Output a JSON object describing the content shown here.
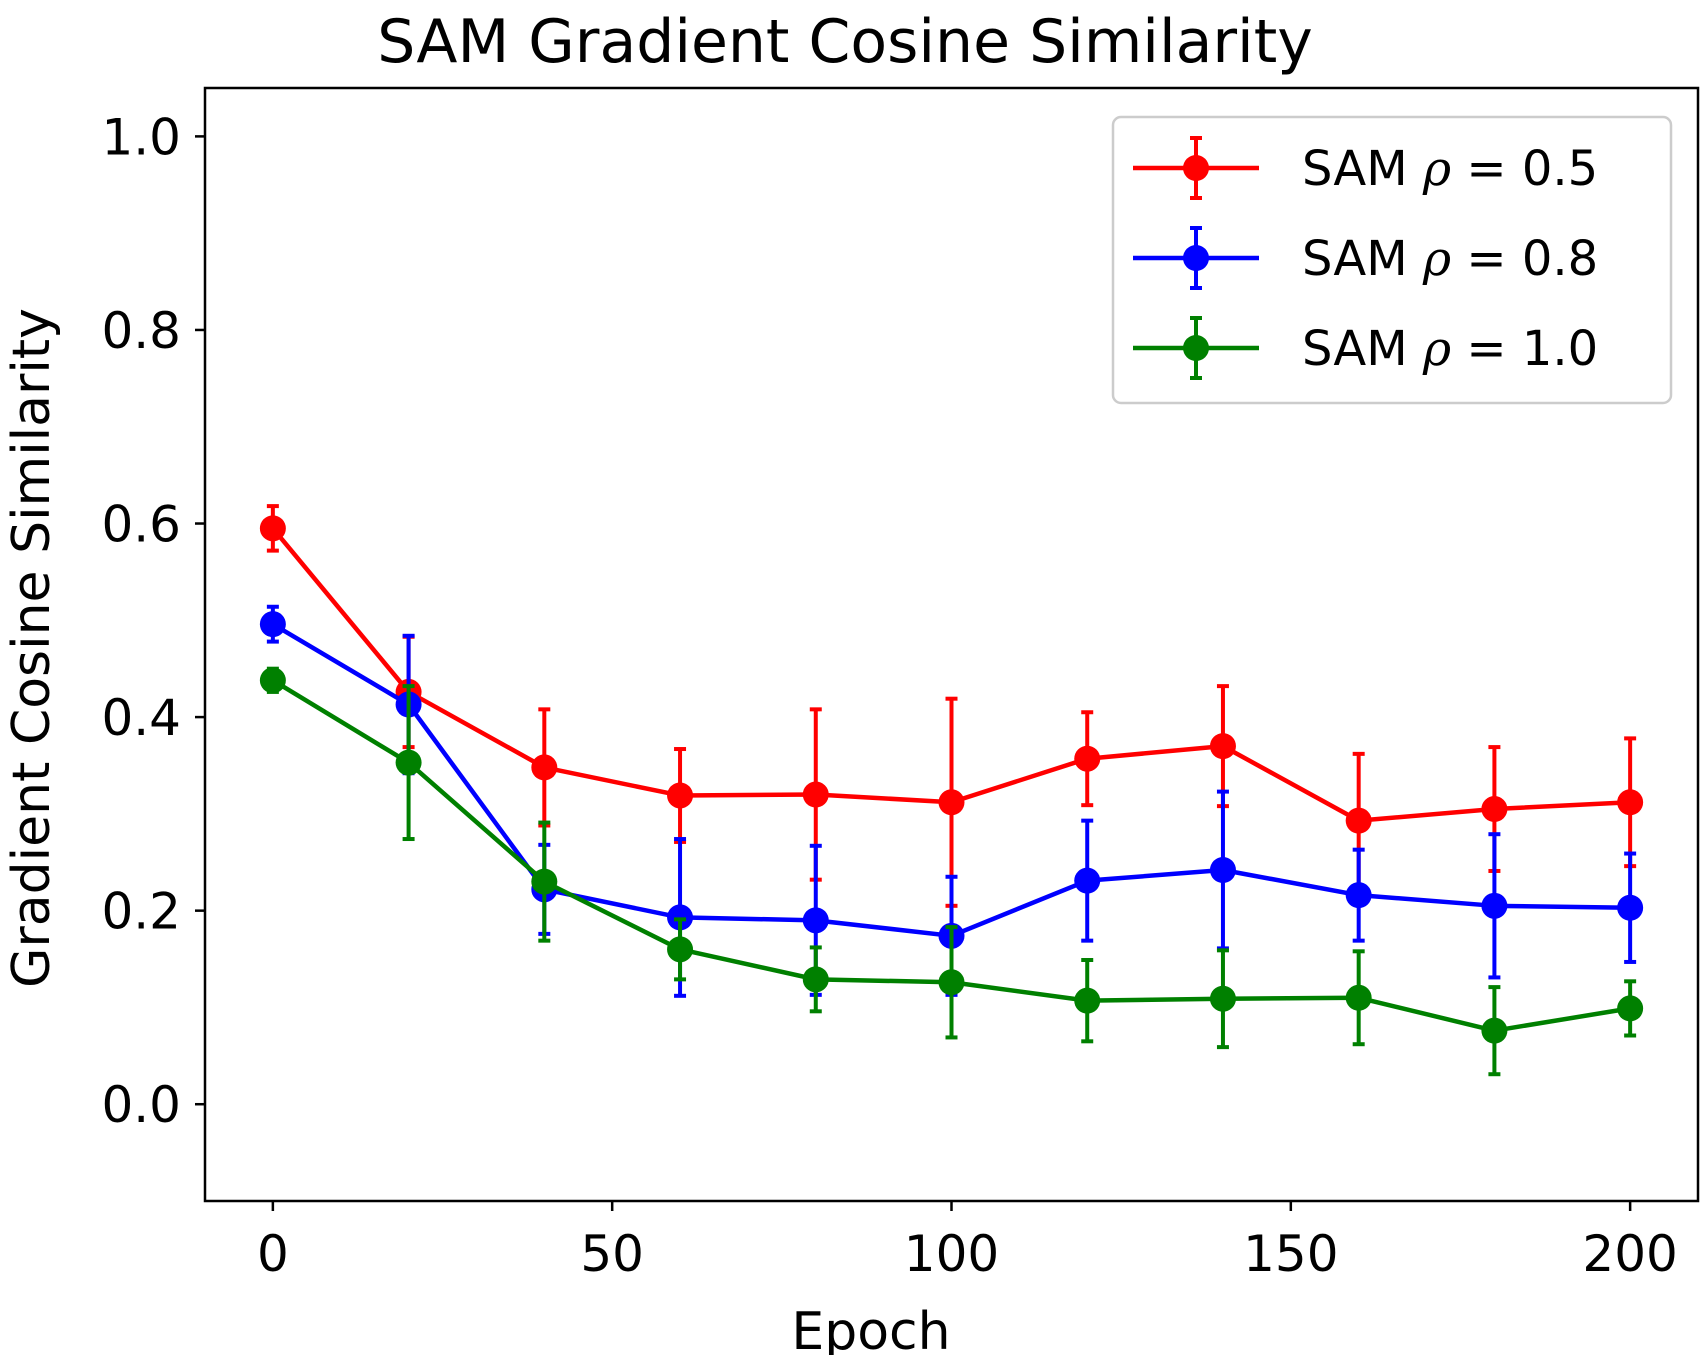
{
  "chart_data": {
    "type": "line",
    "title": "SAM Gradient Cosine Similarity",
    "xlabel": "Epoch",
    "ylabel": "Gradient Cosine Similarity",
    "xlim": [
      -10,
      210
    ],
    "ylim": [
      -0.1,
      1.05
    ],
    "xticks": [
      0,
      50,
      100,
      150,
      200
    ],
    "xtick_labels": [
      "0",
      "50",
      "100",
      "150",
      "200"
    ],
    "yticks": [
      0.0,
      0.2,
      0.4,
      0.6,
      0.8,
      1.0
    ],
    "ytick_labels": [
      "0.0",
      "0.2",
      "0.4",
      "0.6",
      "0.8",
      "1.0"
    ],
    "grid": false,
    "legend_position": "top-right",
    "x": [
      0,
      20,
      40,
      60,
      80,
      100,
      120,
      140,
      160,
      180,
      200
    ],
    "series": [
      {
        "name": "SAM ρ = 0.5",
        "legend_prefix": "SAM ",
        "legend_symbol": "ρ",
        "legend_suffix": " = 0.5",
        "color": "#ff0000",
        "values": [
          0.595,
          0.426,
          0.348,
          0.319,
          0.32,
          0.312,
          0.357,
          0.37,
          0.293,
          0.305,
          0.312
        ],
        "errors": [
          0.023,
          0.057,
          0.06,
          0.048,
          0.088,
          0.107,
          0.048,
          0.062,
          0.069,
          0.064,
          0.066
        ]
      },
      {
        "name": "SAM ρ = 0.8",
        "legend_prefix": "SAM ",
        "legend_symbol": "ρ",
        "legend_suffix": " = 0.8",
        "color": "#0000ff",
        "values": [
          0.496,
          0.413,
          0.222,
          0.193,
          0.19,
          0.174,
          0.231,
          0.242,
          0.216,
          0.205,
          0.203
        ],
        "errors": [
          0.018,
          0.071,
          0.046,
          0.081,
          0.077,
          0.061,
          0.062,
          0.081,
          0.047,
          0.074,
          0.056
        ]
      },
      {
        "name": "SAM ρ = 1.0",
        "legend_prefix": "SAM ",
        "legend_symbol": "ρ",
        "legend_suffix": " = 1.0",
        "color": "#008000",
        "values": [
          0.438,
          0.353,
          0.23,
          0.16,
          0.129,
          0.126,
          0.107,
          0.109,
          0.11,
          0.076,
          0.099
        ],
        "errors": [
          0.012,
          0.079,
          0.061,
          0.031,
          0.033,
          0.057,
          0.042,
          0.05,
          0.048,
          0.045,
          0.028
        ]
      }
    ]
  }
}
